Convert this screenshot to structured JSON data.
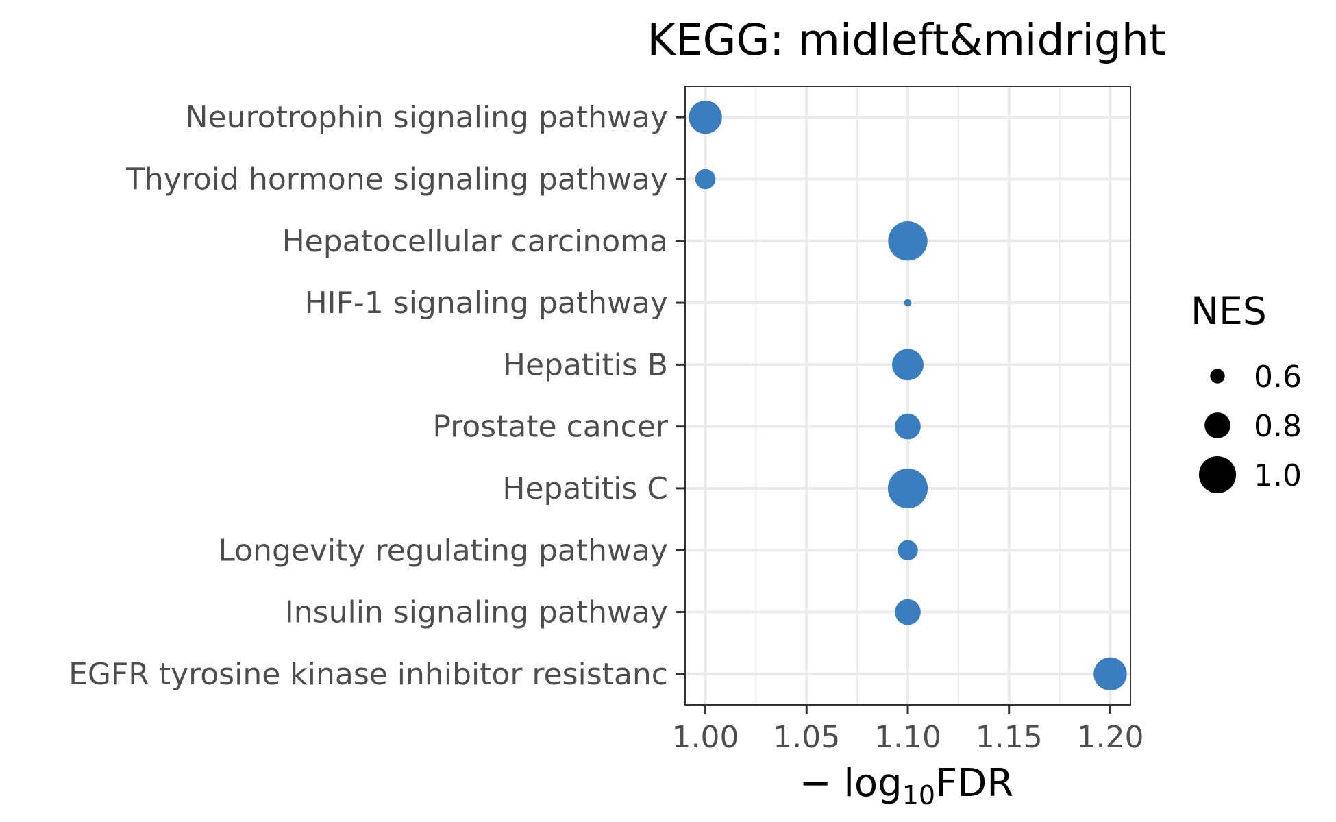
{
  "chart_data": {
    "type": "scatter",
    "title": "KEGG: midleft&midright",
    "xlabel": {
      "prefix": "− log",
      "subscript": "10",
      "suffix": "FDR"
    },
    "ylabel": "",
    "xlim": [
      0.99,
      1.21
    ],
    "xticks": [
      1.0,
      1.05,
      1.1,
      1.15,
      1.2
    ],
    "xtick_labels": [
      "1.00",
      "1.05",
      "1.10",
      "1.15",
      "1.20"
    ],
    "grid": true,
    "point_color": "#3a7ebf",
    "categories": [
      "Neurotrophin signaling pathway",
      "Thyroid hormone signaling pathway",
      "Hepatocellular carcinoma",
      "HIF-1 signaling pathway",
      "Hepatitis B",
      "Prostate cancer",
      "Hepatitis C",
      "Longevity regulating pathway",
      "Insulin signaling pathway",
      "EGFR tyrosine kinase inhibitor resistanc"
    ],
    "x": [
      1.0,
      1.0,
      1.1,
      1.1,
      1.1,
      1.1,
      1.1,
      1.1,
      1.1,
      1.2
    ],
    "size": [
      0.93,
      0.7,
      1.04,
      0.47,
      0.9,
      0.8,
      1.05,
      0.7,
      0.8,
      0.93
    ],
    "size_legend": {
      "title": "NES",
      "placement": "right",
      "values": [
        0.6,
        0.8,
        1.0
      ],
      "labels": [
        "0.6",
        "0.8",
        "1.0"
      ]
    }
  }
}
